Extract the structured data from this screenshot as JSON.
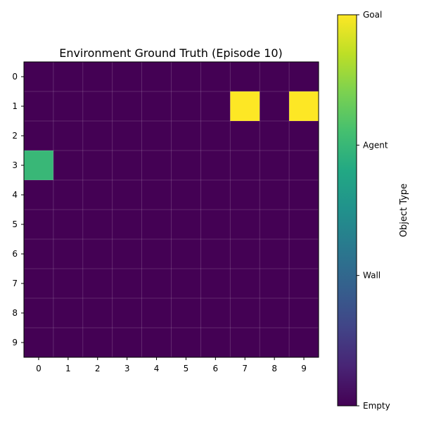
{
  "chart_data": {
    "type": "heatmap",
    "title": "Environment Ground Truth (Episode 10)",
    "xlabel": "",
    "ylabel": "",
    "x_ticks": [
      "0",
      "1",
      "2",
      "3",
      "4",
      "5",
      "6",
      "7",
      "8",
      "9"
    ],
    "y_ticks": [
      "0",
      "1",
      "2",
      "3",
      "4",
      "5",
      "6",
      "7",
      "8",
      "9"
    ],
    "grid": true,
    "colormap": "viridis",
    "colorbar": {
      "label": "Object Type",
      "range": [
        0,
        3
      ],
      "ticks": [
        {
          "value": 0,
          "label": "Empty"
        },
        {
          "value": 1,
          "label": "Wall"
        },
        {
          "value": 2,
          "label": "Agent"
        },
        {
          "value": 3,
          "label": "Goal"
        }
      ]
    },
    "values": [
      [
        0,
        0,
        0,
        0,
        0,
        0,
        0,
        0,
        0,
        0
      ],
      [
        0,
        0,
        0,
        0,
        0,
        0,
        0,
        3,
        0,
        3
      ],
      [
        0,
        0,
        0,
        0,
        0,
        0,
        0,
        0,
        0,
        0
      ],
      [
        2,
        0,
        0,
        0,
        0,
        0,
        0,
        0,
        0,
        0
      ],
      [
        0,
        0,
        0,
        0,
        0,
        0,
        0,
        0,
        0,
        0
      ],
      [
        0,
        0,
        0,
        0,
        0,
        0,
        0,
        0,
        0,
        0
      ],
      [
        0,
        0,
        0,
        0,
        0,
        0,
        0,
        0,
        0,
        0
      ],
      [
        0,
        0,
        0,
        0,
        0,
        0,
        0,
        0,
        0,
        0
      ],
      [
        0,
        0,
        0,
        0,
        0,
        0,
        0,
        0,
        0,
        0
      ],
      [
        0,
        0,
        0,
        0,
        0,
        0,
        0,
        0,
        0,
        0
      ]
    ]
  }
}
